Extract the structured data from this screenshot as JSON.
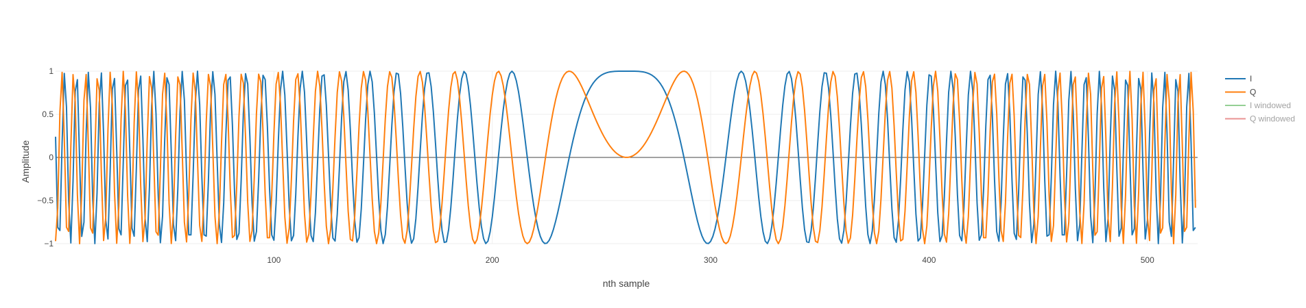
{
  "chart_data": {
    "type": "line",
    "xlabel": "nth sample",
    "ylabel": "Amplitude",
    "title": "",
    "xlim": [
      0,
      523
    ],
    "ylim": [
      -1,
      1
    ],
    "x_ticks": [
      100,
      200,
      300,
      400,
      500
    ],
    "y_ticks": [
      -1,
      -0.5,
      0,
      0.5,
      1
    ],
    "y_tick_labels": [
      "−1",
      "−0.5",
      "0",
      "0.5",
      "1"
    ],
    "grid": true,
    "legend_position": "right",
    "signal": {
      "description": "linear chirp, zero frequency near n = 261",
      "n_samples": 523,
      "center_sample": 261.5,
      "chirp_rate": 0.000725
    },
    "series": [
      {
        "name": "I",
        "color": "#1f77b4",
        "visible": true,
        "function": "cos"
      },
      {
        "name": "Q",
        "color": "#ff7f0e",
        "visible": true,
        "function": "sin"
      },
      {
        "name": "I windowed",
        "color": "#2ca02c",
        "visible": false
      },
      {
        "name": "Q windowed",
        "color": "#d62728",
        "visible": false
      }
    ]
  }
}
